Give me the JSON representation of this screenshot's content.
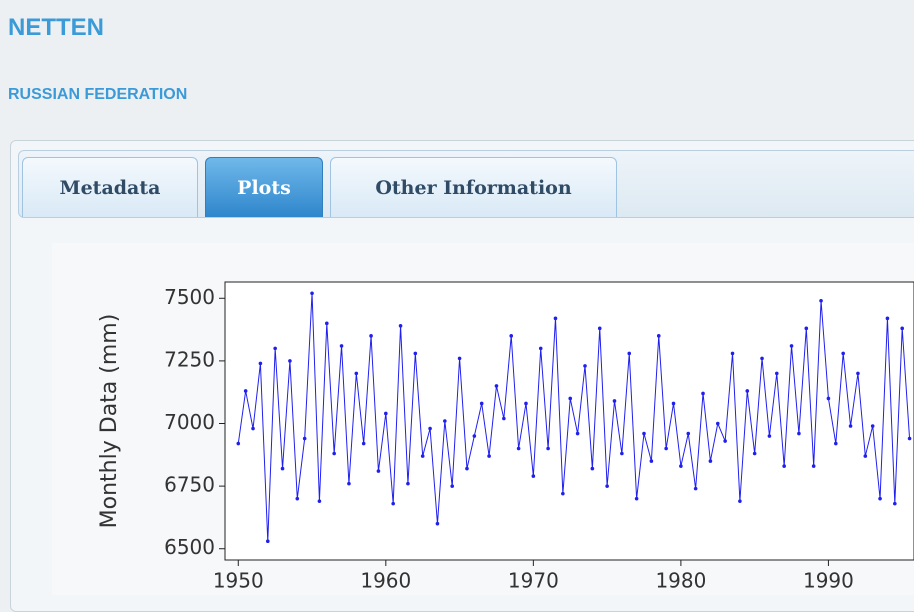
{
  "header": {
    "title": "NETTEN",
    "subtitle": "RUSSIAN FEDERATION"
  },
  "tabs": [
    "Metadata",
    "Plots",
    "Other Information"
  ],
  "chart_data": {
    "type": "line",
    "y_label": "Monthly Data (mm)",
    "x": [
      1950,
      1950.5,
      1951,
      1951.5,
      1952,
      1952.5,
      1953,
      1953.5,
      1954,
      1954.5,
      1955,
      1955.5,
      1956,
      1956.5,
      1957,
      1957.5,
      1958,
      1958.5,
      1959,
      1959.5,
      1960,
      1960.5,
      1961,
      1961.5,
      1962,
      1962.5,
      1963,
      1963.5,
      1964,
      1964.5,
      1965,
      1965.5,
      1966,
      1966.5,
      1967,
      1967.5,
      1968,
      1968.5,
      1969,
      1969.5,
      1970,
      1970.5,
      1971,
      1971.5,
      1972,
      1972.5,
      1973,
      1973.5,
      1974,
      1974.5,
      1975,
      1975.5,
      1976,
      1976.5,
      1977,
      1977.5,
      1978,
      1978.5,
      1979,
      1979.5,
      1980,
      1980.5,
      1981,
      1981.5,
      1982,
      1982.5,
      1983,
      1983.5,
      1984,
      1984.5,
      1985,
      1985.5,
      1986,
      1986.5,
      1987,
      1987.5,
      1988,
      1988.5,
      1989,
      1989.5,
      1990,
      1990.5,
      1991,
      1991.5,
      1992,
      1992.5,
      1993,
      1993.5,
      1994,
      1994.5,
      1995,
      1995.5
    ],
    "series": [
      {
        "color": "#2020ee",
        "values": [
          6920,
          7130,
          6980,
          7240,
          6530,
          7300,
          6820,
          7250,
          6700,
          6940,
          7520,
          6690,
          7400,
          6880,
          7310,
          6760,
          7200,
          6920,
          7350,
          6810,
          7040,
          6680,
          7390,
          6760,
          7280,
          6870,
          6980,
          6600,
          7010,
          6750,
          7260,
          6820,
          6950,
          7080,
          6870,
          7150,
          7020,
          7350,
          6900,
          7080,
          6790,
          7300,
          6900,
          7420,
          6720,
          7100,
          6960,
          7230,
          6820,
          7380,
          6750,
          7090,
          6880,
          7280,
          6700,
          6960,
          6850,
          7350,
          6900,
          7080,
          6830,
          6960,
          6740,
          7120,
          6850,
          7000,
          6930,
          7280,
          6690,
          7130,
          6880,
          7260,
          6950,
          7200,
          6830,
          7310,
          6960,
          7380,
          6830,
          7490,
          7100,
          6920,
          7280,
          6990,
          7200,
          6870,
          6990,
          6700,
          7420,
          6680,
          7380,
          6940
        ]
      }
    ],
    "xlim": [
      1949.1,
      1995.8
    ],
    "ylim": [
      6455,
      7565
    ],
    "xticks": [
      1950,
      1960,
      1970,
      1980,
      1990
    ],
    "yticks": [
      6500,
      6750,
      7000,
      7250,
      7500
    ]
  }
}
